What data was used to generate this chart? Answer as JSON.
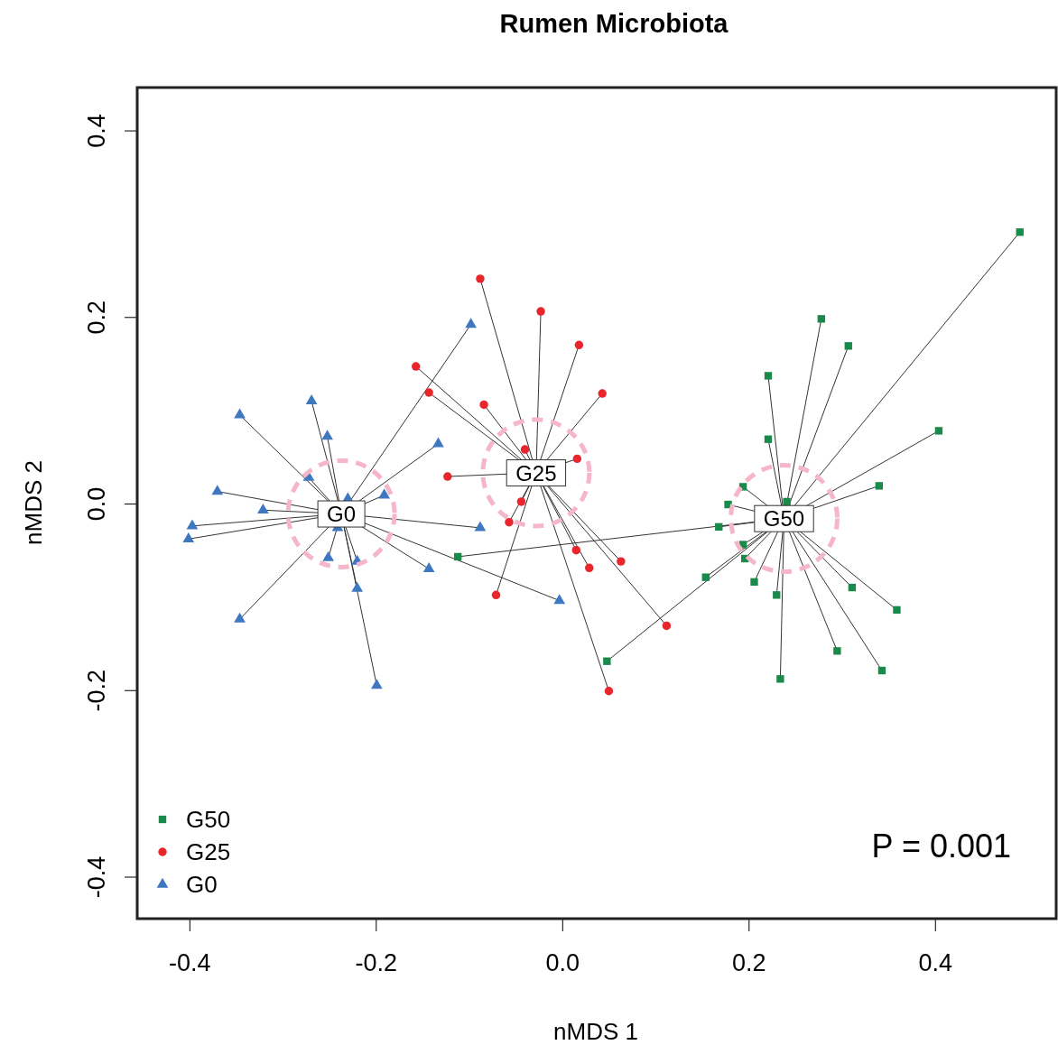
{
  "chart_data": {
    "type": "scatter",
    "title": "Rumen Microbiota",
    "xlabel": "nMDS 1",
    "ylabel": "nMDS 2",
    "xlim": [
      -0.456,
      0.53
    ],
    "ylim": [
      -0.445,
      0.446
    ],
    "xticks": [
      -0.4,
      -0.2,
      {
        "value": 0,
        "label": "0.0"
      },
      0.2,
      0.4
    ],
    "yticks": [
      -0.4,
      -0.2,
      {
        "value": 0,
        "label": "0.0"
      },
      0.2,
      0.4
    ],
    "grid": false,
    "legend": "bottom left",
    "series": [
      {
        "name": "G50",
        "color": "#1a8a4a",
        "marker": "square",
        "x": [
          0.491,
          0.278,
          0.307,
          0.221,
          0.404,
          0.221,
          0.34,
          0.194,
          0.178,
          0.241,
          0.168,
          0.194,
          0.196,
          0.206,
          0.154,
          0.23,
          0.311,
          0.359,
          0.295,
          0.343,
          0.234,
          0.048,
          -0.112
        ],
        "values": [
          0.291,
          0.198,
          0.169,
          0.137,
          0.078,
          0.069,
          0.019,
          0.018,
          -0.001,
          0.002,
          -0.025,
          -0.044,
          -0.059,
          -0.084,
          -0.079,
          -0.098,
          -0.09,
          -0.114,
          -0.158,
          -0.179,
          -0.188,
          -0.169,
          -0.057
        ]
      },
      {
        "name": "G25",
        "color": "#e8262b",
        "marker": "circle",
        "x": [
          -0.088,
          -0.023,
          0.018,
          -0.157,
          -0.143,
          -0.084,
          0.043,
          -0.04,
          0.016,
          -0.123,
          -0.044,
          -0.057,
          0.015,
          0.029,
          0.063,
          -0.071,
          0.112,
          0.05
        ],
        "values": [
          0.241,
          0.206,
          0.17,
          0.147,
          0.119,
          0.106,
          0.118,
          0.058,
          0.048,
          0.029,
          0.002,
          -0.02,
          -0.05,
          -0.069,
          -0.062,
          -0.098,
          -0.131,
          -0.201
        ]
      },
      {
        "name": "G0",
        "color": "#3f78c0",
        "marker": "triangle",
        "x": [
          -0.098,
          -0.269,
          -0.346,
          -0.252,
          -0.133,
          -0.272,
          -0.37,
          -0.23,
          -0.321,
          -0.397,
          -0.401,
          -0.191,
          -0.241,
          -0.088,
          -0.251,
          -0.22,
          -0.143,
          -0.22,
          -0.003,
          -0.346,
          -0.199
        ],
        "values": [
          0.192,
          0.11,
          0.095,
          0.072,
          0.064,
          0.028,
          0.013,
          0.005,
          -0.007,
          -0.024,
          -0.038,
          0.009,
          -0.026,
          -0.026,
          -0.058,
          -0.062,
          -0.07,
          -0.091,
          -0.104,
          -0.124,
          -0.195
        ]
      },
      {
        "type": "scatter",
        "marker": "circle",
        "color": "#f4b6c8",
        "x": [
          0.238,
          -0.028,
          -0.237
        ],
        "values": [
          -0.016,
          0.033,
          -0.011
        ]
      }
    ],
    "annotations": [
      {
        "text": "G50",
        "x": 0.238,
        "y": -0.016
      },
      {
        "text": "G25",
        "x": -0.028,
        "y": 0.033
      },
      {
        "text": "G0",
        "x": -0.237,
        "y": -0.011
      },
      "P = 0.001"
    ]
  }
}
